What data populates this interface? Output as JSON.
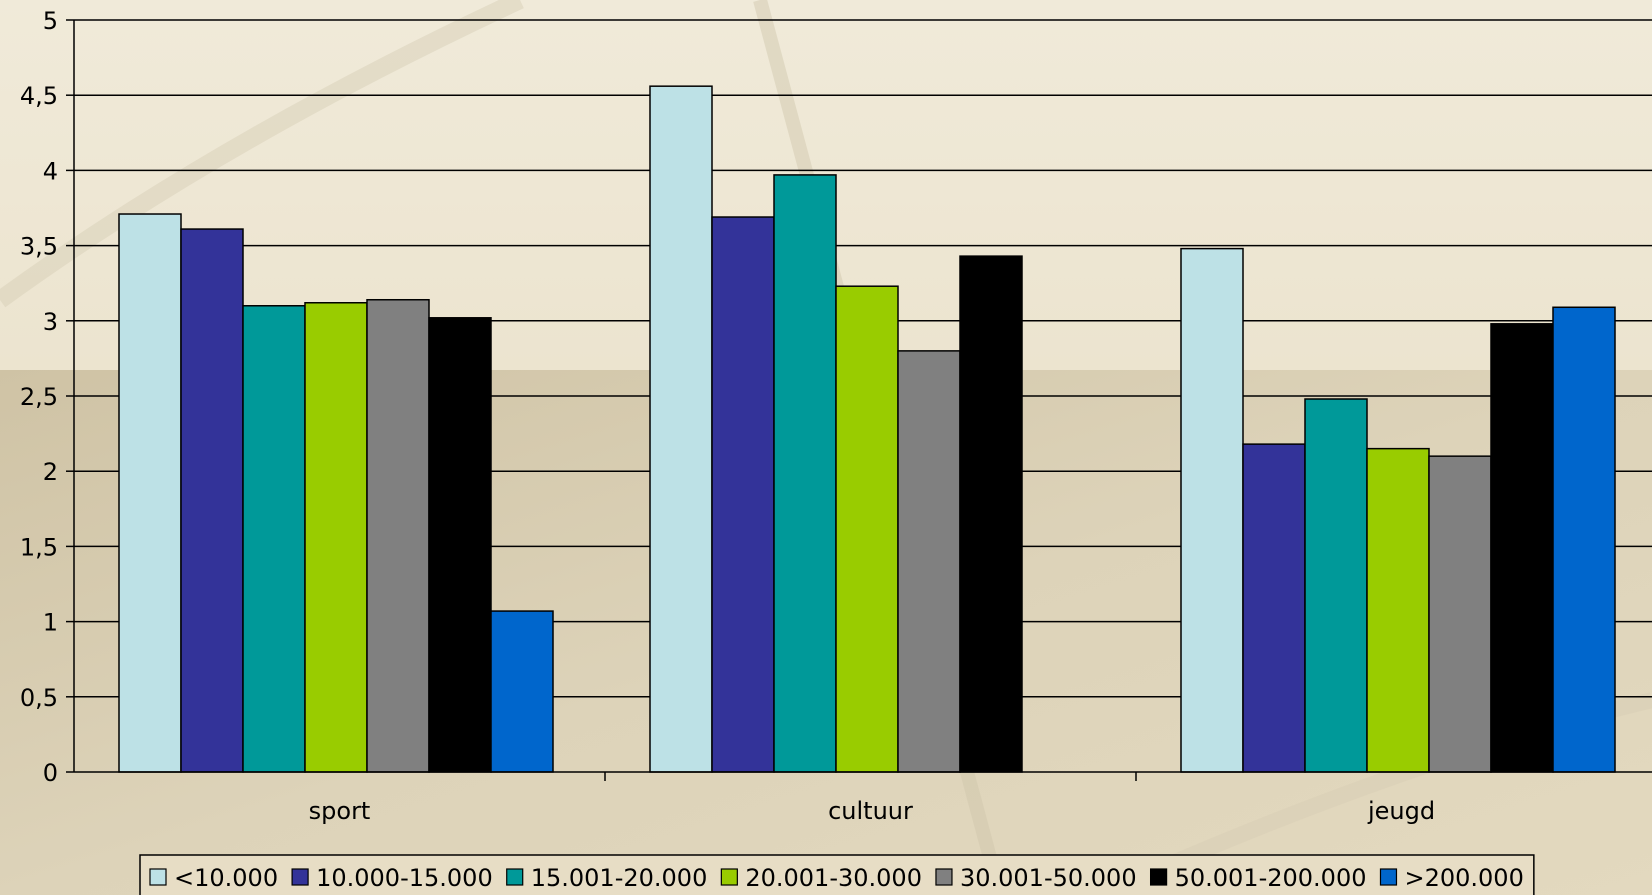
{
  "chart_data": {
    "type": "bar",
    "title": "",
    "xlabel": "",
    "ylabel": "",
    "categories": [
      "sport",
      "cultuur",
      "jeugd"
    ],
    "ylim": [
      0,
      5
    ],
    "y_ticks": [
      "0",
      "0,5",
      "1",
      "1,5",
      "2",
      "2,5",
      "3",
      "3,5",
      "4",
      "4,5",
      "5"
    ],
    "grid": true,
    "legend_position": "bottom",
    "series": [
      {
        "name": "<10.000",
        "color": "#bde1e6",
        "values": [
          3.71,
          4.56,
          3.48
        ]
      },
      {
        "name": "10.000-15.000",
        "color": "#333399",
        "values": [
          3.61,
          3.69,
          2.18
        ]
      },
      {
        "name": "15.001-20.000",
        "color": "#009999",
        "values": [
          3.1,
          3.97,
          2.48
        ]
      },
      {
        "name": "20.001-30.000",
        "color": "#99cc00",
        "values": [
          3.12,
          3.23,
          2.15
        ]
      },
      {
        "name": "30.001-50.000",
        "color": "#808080",
        "values": [
          3.14,
          2.8,
          2.1
        ]
      },
      {
        "name": "50.001-200.000",
        "color": "#000000",
        "values": [
          3.02,
          3.43,
          2.98
        ]
      },
      {
        "name": ">200.000",
        "color": "#0066cc",
        "values": [
          1.07,
          null,
          3.09
        ]
      }
    ]
  }
}
